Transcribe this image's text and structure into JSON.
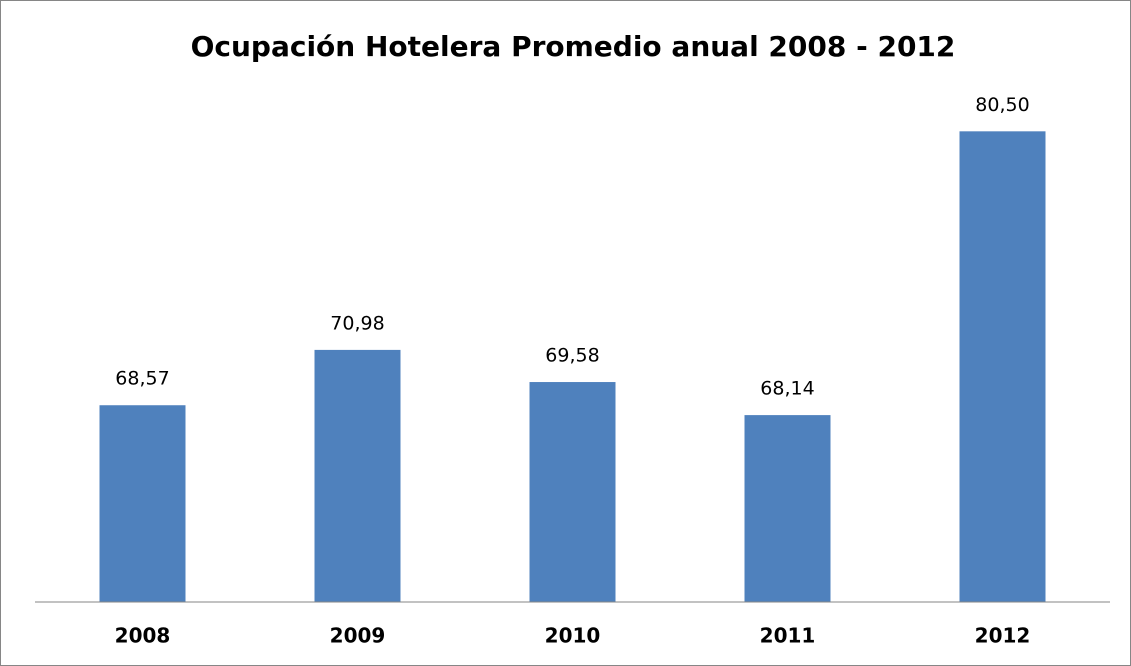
{
  "chart_data": {
    "type": "bar",
    "title": "Ocupación Hotelera Promedio anual 2008 - 2012",
    "categories": [
      "2008",
      "2009",
      "2010",
      "2011",
      "2012"
    ],
    "values": [
      68.57,
      70.98,
      69.58,
      68.14,
      80.5
    ],
    "value_labels": [
      "68,57",
      "70,98",
      "69,58",
      "68,14",
      "80,50"
    ],
    "color": "#4f81bd",
    "ylim": [
      60,
      85
    ]
  }
}
